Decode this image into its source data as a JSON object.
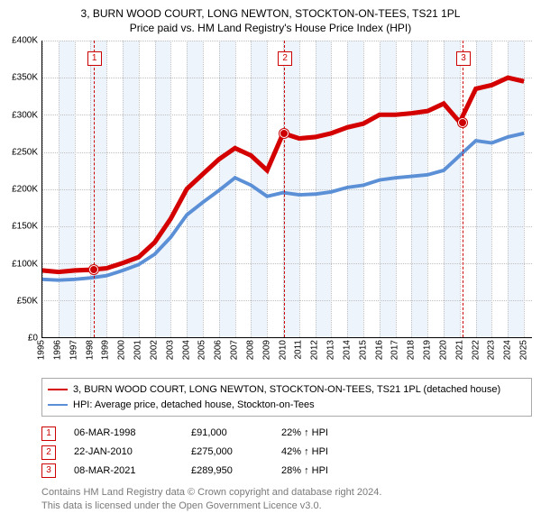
{
  "title_line1": "3, BURN WOOD COURT, LONG NEWTON, STOCKTON-ON-TEES, TS21 1PL",
  "title_line2": "Price paid vs. HM Land Registry's House Price Index (HPI)",
  "chart": {
    "type": "line",
    "x_years": [
      1995,
      1996,
      1997,
      1998,
      1999,
      2000,
      2001,
      2002,
      2003,
      2004,
      2005,
      2006,
      2007,
      2008,
      2009,
      2010,
      2011,
      2012,
      2013,
      2014,
      2015,
      2016,
      2017,
      2018,
      2019,
      2020,
      2021,
      2022,
      2023,
      2024,
      2025
    ],
    "x_min": 1995,
    "x_max": 2025.5,
    "ylim": [
      0,
      400000
    ],
    "ytick_step": 50000,
    "y_tick_labels": [
      "£0",
      "£50K",
      "£100K",
      "£150K",
      "£200K",
      "£250K",
      "£300K",
      "£350K",
      "£400K"
    ],
    "band_color": "#eef4fb",
    "grid_color": "#c0c0c0",
    "background_color": "#ffffff",
    "series": [
      {
        "name": "property",
        "label": "3, BURN WOOD COURT, LONG NEWTON, STOCKTON-ON-TEES, TS21 1PL (detached house)",
        "color": "#d40000",
        "width": 1.7,
        "points": [
          [
            1995,
            90000
          ],
          [
            1996,
            88000
          ],
          [
            1997,
            90000
          ],
          [
            1998,
            91000
          ],
          [
            1999,
            93000
          ],
          [
            2000,
            100000
          ],
          [
            2001,
            108000
          ],
          [
            2002,
            128000
          ],
          [
            2003,
            160000
          ],
          [
            2004,
            200000
          ],
          [
            2005,
            220000
          ],
          [
            2006,
            240000
          ],
          [
            2007,
            255000
          ],
          [
            2008,
            245000
          ],
          [
            2009,
            225000
          ],
          [
            2010,
            275000
          ],
          [
            2011,
            268000
          ],
          [
            2012,
            270000
          ],
          [
            2013,
            275000
          ],
          [
            2014,
            283000
          ],
          [
            2015,
            288000
          ],
          [
            2016,
            300000
          ],
          [
            2017,
            300000
          ],
          [
            2018,
            302000
          ],
          [
            2019,
            305000
          ],
          [
            2020,
            315000
          ],
          [
            2021,
            289950
          ],
          [
            2022,
            335000
          ],
          [
            2023,
            340000
          ],
          [
            2024,
            350000
          ],
          [
            2025,
            345000
          ]
        ]
      },
      {
        "name": "hpi",
        "label": "HPI: Average price, detached house, Stockton-on-Tees",
        "color": "#5b8fd6",
        "width": 1.3,
        "points": [
          [
            1995,
            78000
          ],
          [
            1996,
            77000
          ],
          [
            1997,
            78000
          ],
          [
            1998,
            80000
          ],
          [
            1999,
            83000
          ],
          [
            2000,
            90000
          ],
          [
            2001,
            98000
          ],
          [
            2002,
            112000
          ],
          [
            2003,
            135000
          ],
          [
            2004,
            165000
          ],
          [
            2005,
            182000
          ],
          [
            2006,
            198000
          ],
          [
            2007,
            215000
          ],
          [
            2008,
            205000
          ],
          [
            2009,
            190000
          ],
          [
            2010,
            195000
          ],
          [
            2011,
            192000
          ],
          [
            2012,
            193000
          ],
          [
            2013,
            196000
          ],
          [
            2014,
            202000
          ],
          [
            2015,
            205000
          ],
          [
            2016,
            212000
          ],
          [
            2017,
            215000
          ],
          [
            2018,
            217000
          ],
          [
            2019,
            219000
          ],
          [
            2020,
            225000
          ],
          [
            2021,
            245000
          ],
          [
            2022,
            265000
          ],
          [
            2023,
            262000
          ],
          [
            2024,
            270000
          ],
          [
            2025,
            275000
          ]
        ]
      }
    ],
    "markers": [
      {
        "num": "1",
        "year": 1998.18,
        "value": 91000
      },
      {
        "num": "2",
        "year": 2010.06,
        "value": 275000
      },
      {
        "num": "3",
        "year": 2021.18,
        "value": 289950
      }
    ]
  },
  "legend": {
    "series0": "3, BURN WOOD COURT, LONG NEWTON, STOCKTON-ON-TEES, TS21 1PL (detached house)",
    "series1": "HPI: Average price, detached house, Stockton-on-Tees"
  },
  "events": [
    {
      "num": "1",
      "date": "06-MAR-1998",
      "price": "£91,000",
      "pct": "22% ↑ HPI"
    },
    {
      "num": "2",
      "date": "22-JAN-2010",
      "price": "£275,000",
      "pct": "42% ↑ HPI"
    },
    {
      "num": "3",
      "date": "08-MAR-2021",
      "price": "£289,950",
      "pct": "28% ↑ HPI"
    }
  ],
  "footer_line1": "Contains HM Land Registry data © Crown copyright and database right 2024.",
  "footer_line2": "This data is licensed under the Open Government Licence v3.0."
}
